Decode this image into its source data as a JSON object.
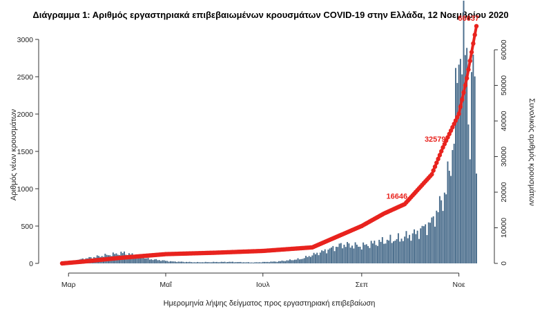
{
  "chart_data": {
    "type": "bar+line",
    "title": "Διάγραμμα 1: Αριθμός εργαστηριακά επιβεβαιωμένων κρουσμάτων COVID-19 στην Ελλάδα, 12 Νοεμβρίου 2020",
    "xlabel": "Ημερομηνία λήψης δείγματος προς εργαστηριακή επιβεβαίωση",
    "ylabel_left": "Αριθμός νέων κρουσμάτων",
    "ylabel_right": "Συνολικός αριθμός κρουσμάτων",
    "x_ticks": [
      {
        "label": "Μαρ",
        "date": "2020-03-01"
      },
      {
        "label": "Μαΐ",
        "date": "2020-05-01"
      },
      {
        "label": "Ιουλ",
        "date": "2020-07-01"
      },
      {
        "label": "Σεπ",
        "date": "2020-09-01"
      },
      {
        "label": "Νοε",
        "date": "2020-11-01"
      }
    ],
    "xlim": [
      "2020-02-26",
      "2020-11-12"
    ],
    "ylim_left": [
      0,
      3000
    ],
    "yticks_left": [
      0,
      500,
      1000,
      1500,
      2000,
      2500,
      3000
    ],
    "ylim_right": [
      0,
      60000
    ],
    "yticks_right": [
      0,
      10000,
      20000,
      30000,
      40000,
      50000,
      60000
    ],
    "grid": false,
    "legend": "none",
    "colors": {
      "bars": "#4a6d8c",
      "cumulative": "#e8231e"
    },
    "daily_keyframes": [
      {
        "date": "2020-02-26",
        "value": 3
      },
      {
        "date": "2020-03-10",
        "value": 60
      },
      {
        "date": "2020-03-25",
        "value": 110
      },
      {
        "date": "2020-04-05",
        "value": 140
      },
      {
        "date": "2020-04-20",
        "value": 60
      },
      {
        "date": "2020-05-05",
        "value": 25
      },
      {
        "date": "2020-05-20",
        "value": 15
      },
      {
        "date": "2020-06-10",
        "value": 20
      },
      {
        "date": "2020-06-25",
        "value": 12
      },
      {
        "date": "2020-07-10",
        "value": 25
      },
      {
        "date": "2020-07-25",
        "value": 60
      },
      {
        "date": "2020-08-05",
        "value": 140
      },
      {
        "date": "2020-08-20",
        "value": 250
      },
      {
        "date": "2020-09-01",
        "value": 230
      },
      {
        "date": "2020-09-15",
        "value": 300
      },
      {
        "date": "2020-09-25",
        "value": 330
      },
      {
        "date": "2020-10-05",
        "value": 400
      },
      {
        "date": "2020-10-15",
        "value": 550
      },
      {
        "date": "2020-10-22",
        "value": 850
      },
      {
        "date": "2020-10-27",
        "value": 1300
      },
      {
        "date": "2020-10-31",
        "value": 2400
      },
      {
        "date": "2020-11-02",
        "value": 3000
      },
      {
        "date": "2020-11-04",
        "value": 2900
      },
      {
        "date": "2020-11-06",
        "value": 2700
      },
      {
        "date": "2020-11-08",
        "value": 1600
      },
      {
        "date": "2020-11-10",
        "value": 2800
      },
      {
        "date": "2020-11-11",
        "value": 2200
      },
      {
        "date": "2020-11-12",
        "value": 1450
      }
    ],
    "cumulative_keyframes": [
      {
        "date": "2020-02-26",
        "value": 0
      },
      {
        "date": "2020-03-10",
        "value": 500
      },
      {
        "date": "2020-04-01",
        "value": 1500
      },
      {
        "date": "2020-05-01",
        "value": 2600
      },
      {
        "date": "2020-06-01",
        "value": 3000
      },
      {
        "date": "2020-07-01",
        "value": 3500
      },
      {
        "date": "2020-08-01",
        "value": 4500
      },
      {
        "date": "2020-09-01",
        "value": 10500
      },
      {
        "date": "2020-09-15",
        "value": 14000
      },
      {
        "date": "2020-09-28",
        "value": 16646
      },
      {
        "date": "2020-10-15",
        "value": 25000
      },
      {
        "date": "2020-10-22",
        "value": 32579
      },
      {
        "date": "2020-11-01",
        "value": 42000
      },
      {
        "date": "2020-11-06",
        "value": 52000
      },
      {
        "date": "2020-11-12",
        "value": 66637
      }
    ],
    "annotations": [
      {
        "text": "16646",
        "date": "2020-09-28",
        "value": 16646
      },
      {
        "text": "32579",
        "date": "2020-10-22",
        "value": 32579
      },
      {
        "text": "66637",
        "date": "2020-11-12",
        "value": 66637
      }
    ]
  }
}
